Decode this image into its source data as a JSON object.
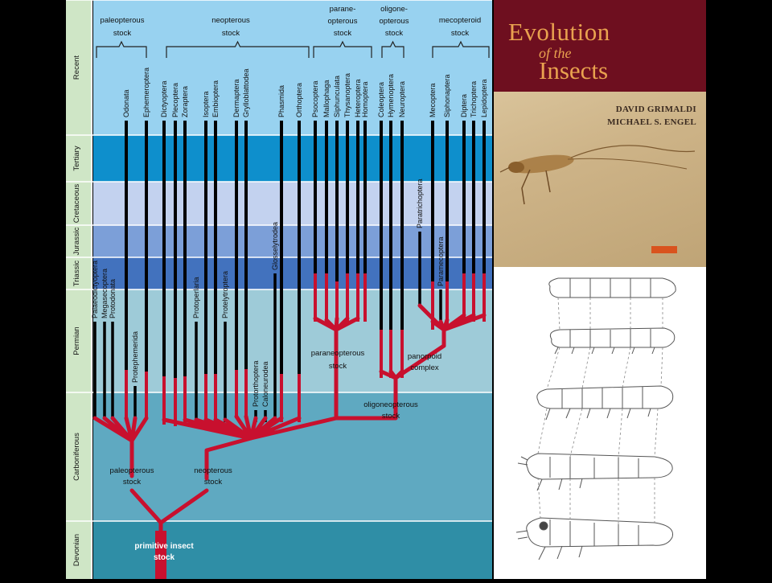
{
  "periods": [
    {
      "label": "Recent"
    },
    {
      "label": "Tertiary"
    },
    {
      "label": "Cretaceous"
    },
    {
      "label": "Jurassic"
    },
    {
      "label": "Triassic"
    },
    {
      "label": "Permian"
    },
    {
      "label": "Carboniferous"
    },
    {
      "label": "Devonian"
    }
  ],
  "group_headers": [
    {
      "lines": [
        "paleopterous",
        "stock"
      ]
    },
    {
      "lines": [
        "neopterous",
        "stock"
      ]
    },
    {
      "lines": [
        "parane-",
        "opterous",
        "stock"
      ]
    },
    {
      "lines": [
        "oligone-",
        "opterous",
        "stock"
      ]
    },
    {
      "lines": [
        "mecopteroid",
        "stock"
      ]
    }
  ],
  "living_orders": [
    "Odonata",
    "Ephemeroptera",
    "Dictyoptera",
    "Plecoptera",
    "Zoraptera",
    "Isoptera",
    "Embioptera",
    "Dermaptera",
    "Grylloblattodea",
    "Phasmida",
    "Orthoptera",
    "Psocoptera",
    "Mallophaga",
    "Siphunculata",
    "Thysanoptera",
    "Heteroptera",
    "Homoptera",
    "Coleoptera",
    "Hymenoptera",
    "Neuroptera",
    "Mecoptera",
    "Siphonaptera",
    "Diptera",
    "Trichoptera",
    "Lepidoptera"
  ],
  "extinct_orders": [
    "Palaeodictyoptera",
    "Megasecoptera",
    "Protodonata",
    "Protephemerida",
    "Protoperlaria",
    "Protelytroptera",
    "Protorthoptera",
    "Caloneurodea",
    "Glosselytrodea",
    "Paratrichoptera",
    "Paramecoptera"
  ],
  "node_labels": [
    {
      "lines": [
        "paraneopterous",
        "stock"
      ]
    },
    {
      "lines": [
        "panorpoid",
        "complex"
      ]
    },
    {
      "lines": [
        "oligoneopterous",
        "stock"
      ]
    },
    {
      "lines": [
        "paleopterous",
        "stock"
      ]
    },
    {
      "lines": [
        "neopterous",
        "stock"
      ]
    },
    {
      "lines": [
        "primitive insect",
        "stock"
      ]
    }
  ],
  "book": {
    "title_line1": "Evolution",
    "title_line2": "of the",
    "title_line3": "Insects",
    "author1": "DAVID GRIMALDI",
    "author2": "MICHAEL S. ENGEL"
  },
  "colors": {
    "lineage": "#c8102e",
    "range": "#000000"
  }
}
